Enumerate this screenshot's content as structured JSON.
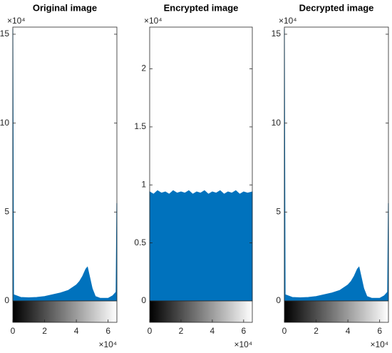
{
  "chart_data": [
    {
      "type": "area",
      "title": "Original image",
      "color": "#0072bd",
      "x": [
        0,
        0.05,
        0.5,
        1,
        1.5,
        2,
        2.5,
        3,
        3.5,
        4,
        4.2,
        4.4,
        4.6,
        4.7,
        4.8,
        5,
        5.2,
        5.5,
        6,
        6.3,
        6.5,
        6.55
      ],
      "values": [
        15.3,
        0.35,
        0.2,
        0.18,
        0.2,
        0.25,
        0.35,
        0.45,
        0.6,
        0.9,
        1.1,
        1.4,
        1.8,
        1.9,
        1.5,
        0.7,
        0.25,
        0.15,
        0.15,
        0.3,
        0.5,
        5.5
      ],
      "xlim": [
        0,
        6.5536
      ],
      "ylim": [
        0,
        15.4
      ],
      "xticks": [
        0,
        2,
        4,
        6
      ],
      "yticks": [
        0,
        5,
        10,
        15
      ],
      "x_exponent_label": "×10⁴",
      "y_exponent_label": "×10⁴",
      "colorbar": true
    },
    {
      "type": "area",
      "title": "Encrypted image",
      "color": "#0072bd",
      "x": [
        0,
        0.25,
        0.5,
        0.75,
        1,
        1.25,
        1.5,
        1.75,
        2,
        2.25,
        2.5,
        2.75,
        3,
        3.25,
        3.5,
        3.75,
        4,
        4.25,
        4.5,
        4.75,
        5,
        5.25,
        5.5,
        5.75,
        6,
        6.25,
        6.5536
      ],
      "values": [
        0.94,
        0.92,
        0.95,
        0.93,
        0.94,
        0.92,
        0.95,
        0.93,
        0.94,
        0.93,
        0.95,
        0.92,
        0.94,
        0.93,
        0.95,
        0.92,
        0.94,
        0.93,
        0.95,
        0.92,
        0.94,
        0.93,
        0.95,
        0.92,
        0.94,
        0.93,
        0.94
      ],
      "xlim": [
        0,
        6.5536
      ],
      "ylim": [
        0,
        2.36
      ],
      "xticks": [
        0,
        2,
        4,
        6
      ],
      "yticks": [
        0,
        0.5,
        1,
        1.5,
        2
      ],
      "x_exponent_label": "×10⁴",
      "y_exponent_label": "×10⁴",
      "colorbar": true
    },
    {
      "type": "area",
      "title": "Decrypted image",
      "color": "#0072bd",
      "x": [
        0,
        0.05,
        0.5,
        1,
        1.5,
        2,
        2.5,
        3,
        3.5,
        4,
        4.2,
        4.4,
        4.6,
        4.7,
        4.8,
        5,
        5.2,
        5.5,
        6,
        6.3,
        6.5,
        6.55
      ],
      "values": [
        15.3,
        0.35,
        0.2,
        0.18,
        0.2,
        0.25,
        0.35,
        0.45,
        0.6,
        0.9,
        1.1,
        1.4,
        1.8,
        1.9,
        1.5,
        0.7,
        0.25,
        0.15,
        0.15,
        0.3,
        0.5,
        5.5
      ],
      "xlim": [
        0,
        6.5536
      ],
      "ylim": [
        0,
        15.4
      ],
      "xticks": [
        0,
        2,
        4,
        6
      ],
      "yticks": [
        0,
        5,
        10,
        15
      ],
      "x_exponent_label": "×10⁴",
      "y_exponent_label": "×10⁴",
      "colorbar": true
    }
  ]
}
